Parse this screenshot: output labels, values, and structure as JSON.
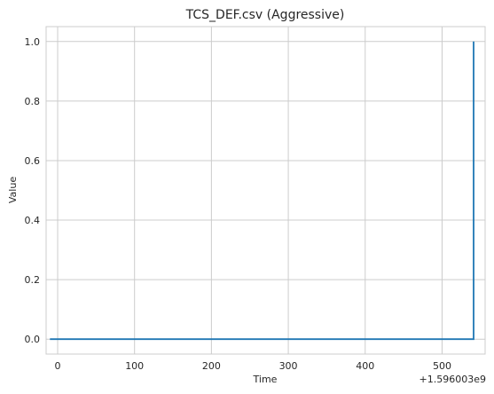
{
  "chart_data": {
    "type": "line",
    "title": "TCS_DEF.csv (Aggressive)",
    "xlabel": "Time",
    "ylabel": "Value",
    "x_offset_label": "+1.596003e9",
    "xlim": [
      -15,
      556
    ],
    "ylim": [
      -0.05,
      1.05
    ],
    "x_ticks": [
      0,
      100,
      200,
      300,
      400,
      500
    ],
    "x_tick_labels": [
      "0",
      "100",
      "200",
      "300",
      "400",
      "500"
    ],
    "y_ticks": [
      0.0,
      0.2,
      0.4,
      0.6,
      0.8,
      1.0
    ],
    "y_tick_labels": [
      "0.0",
      "0.2",
      "0.4",
      "0.6",
      "0.8",
      "1.0"
    ],
    "grid": true,
    "series": [
      {
        "color": "#1f77b4",
        "x": [
          -10,
          100,
          200,
          300,
          400,
          500,
          541,
          541
        ],
        "y": [
          0,
          0,
          0,
          0,
          0,
          0,
          0,
          1
        ]
      }
    ]
  }
}
